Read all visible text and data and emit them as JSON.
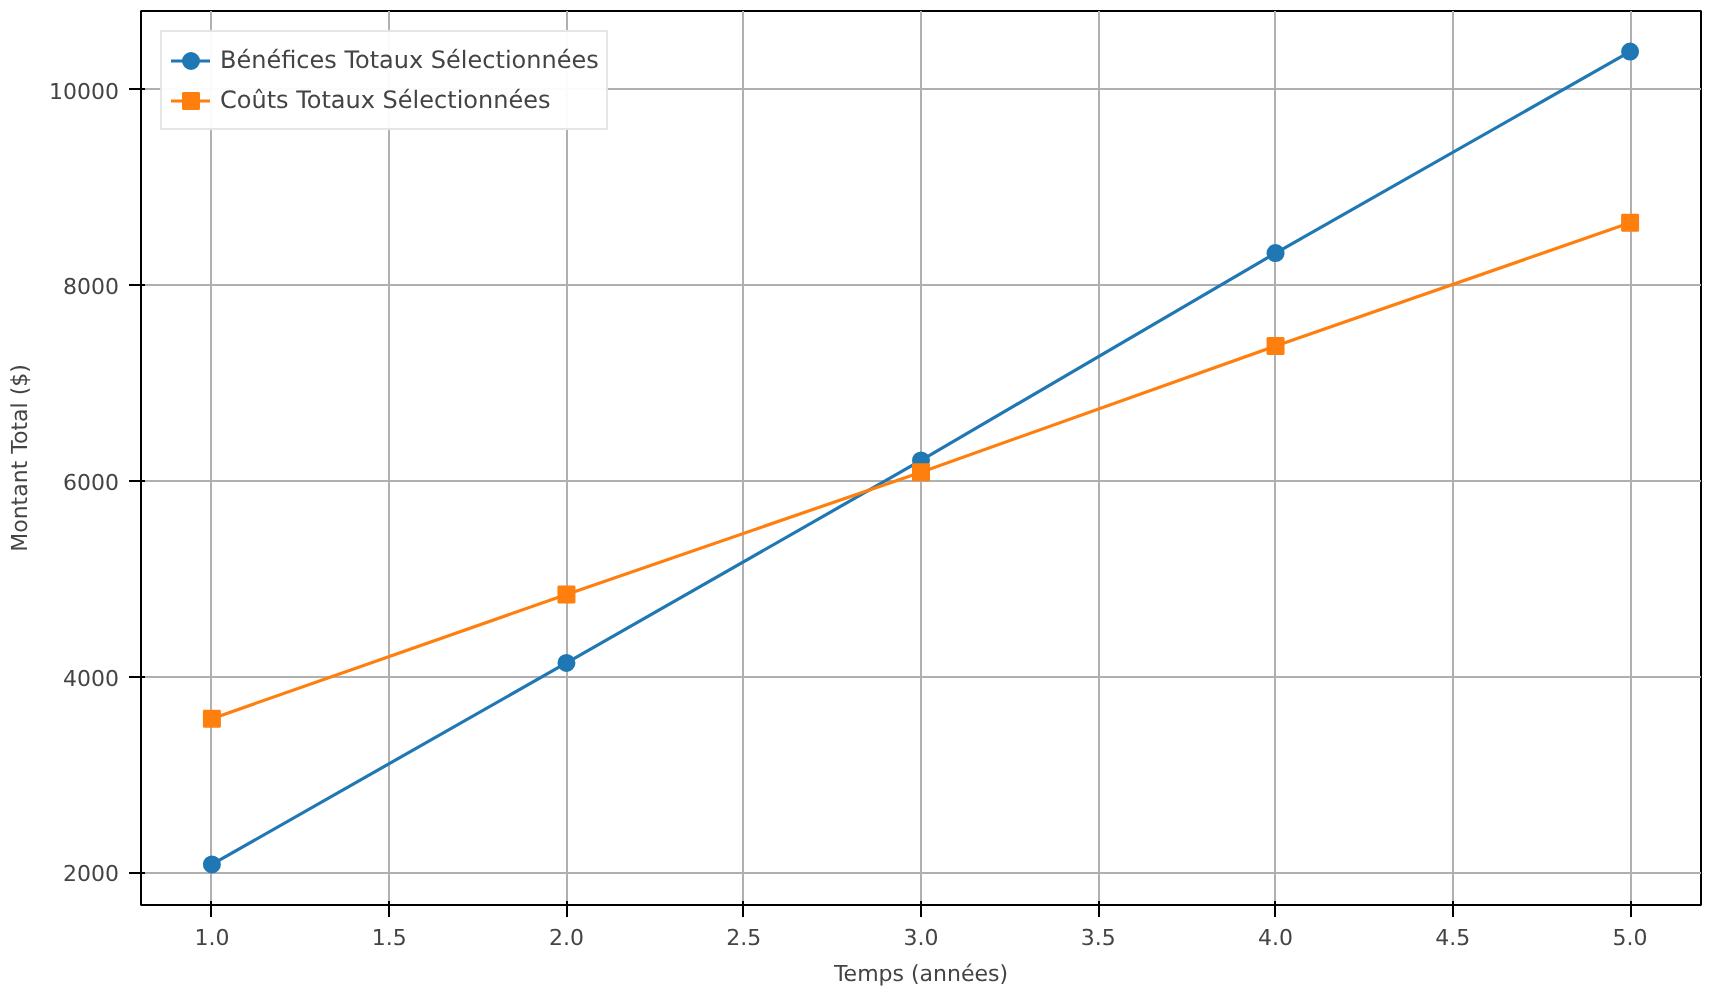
{
  "chart_data": {
    "type": "line",
    "xlabel": "Temps (années)",
    "ylabel": "Montant Total ($)",
    "x": [
      1,
      2,
      3,
      4,
      5
    ],
    "series": [
      {
        "name": "Bénéfices Totaux Sélectionnées",
        "color": "#1f77b4",
        "values": [
          2080,
          4140,
          6210,
          8330,
          10390
        ],
        "marker": "circle"
      },
      {
        "name": "Coûts Totaux Sélectionnées",
        "color": "#ff7f0e",
        "values": [
          3570,
          4840,
          6090,
          7380,
          8640
        ],
        "marker": "square"
      }
    ],
    "xlim": [
      0.8,
      5.2
    ],
    "ylim": [
      1665,
      10805
    ],
    "xticks": [
      {
        "value": 1,
        "label": "1.0"
      },
      {
        "value": 1.5,
        "label": "1.5"
      },
      {
        "value": 2,
        "label": "2.0"
      },
      {
        "value": 2.5,
        "label": "2.5"
      },
      {
        "value": 3,
        "label": "3.0"
      },
      {
        "value": 3.5,
        "label": "3.5"
      },
      {
        "value": 4,
        "label": "4.0"
      },
      {
        "value": 4.5,
        "label": "4.5"
      },
      {
        "value": 5,
        "label": "5.0"
      }
    ],
    "yticks": [
      2000,
      4000,
      6000,
      8000,
      10000
    ],
    "grid": true,
    "legend": "top left",
    "line_style": "solid"
  }
}
